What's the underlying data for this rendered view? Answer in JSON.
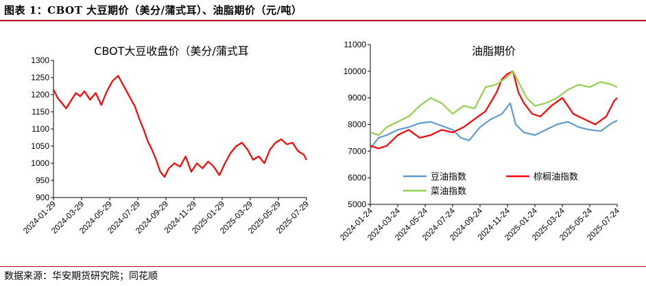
{
  "figure": {
    "title": "图表 1：CBOT 大豆期价（美分/蒲式耳）、油脂期价（元/吨）",
    "source": "数据来源：华安期货研究院；同花顺",
    "accent_color": "#b2001e"
  },
  "chart_data": [
    {
      "type": "line",
      "title": "CBOT大豆收盘价（美分/蒲式耳",
      "x_tick_labels": [
        "2024-01-29",
        "2024-03-29",
        "2024-05-29",
        "2024-07-29",
        "2024-09-29",
        "2024-11-29",
        "2025-01-29",
        "2025-03-29",
        "2025-05-29",
        "2025-07-29"
      ],
      "ylim": [
        900,
        1300
      ],
      "y_ticks": [
        900,
        950,
        1000,
        1050,
        1100,
        1150,
        1200,
        1250,
        1300
      ],
      "legend": "none",
      "grid": false,
      "series": [
        {
          "color": "#ff0000",
          "x": [
            0,
            0.15,
            0.3,
            0.45,
            0.6,
            0.8,
            0.95,
            1.1,
            1.3,
            1.5,
            1.7,
            1.9,
            2.1,
            2.3,
            2.5,
            2.7,
            2.9,
            3.05,
            3.2,
            3.35,
            3.5,
            3.65,
            3.8,
            3.95,
            4.1,
            4.3,
            4.5,
            4.7,
            4.9,
            5.1,
            5.3,
            5.5,
            5.7,
            5.9,
            6.1,
            6.3,
            6.5,
            6.7,
            6.9,
            7.1,
            7.3,
            7.5,
            7.7,
            7.9,
            8.1,
            8.3,
            8.5,
            8.7,
            8.9,
            9.0
          ],
          "y": [
            1215,
            1190,
            1175,
            1160,
            1180,
            1205,
            1195,
            1210,
            1185,
            1205,
            1170,
            1210,
            1240,
            1255,
            1225,
            1195,
            1165,
            1130,
            1100,
            1065,
            1040,
            1010,
            975,
            960,
            985,
            1000,
            990,
            1020,
            975,
            1000,
            985,
            1005,
            990,
            965,
            1000,
            1030,
            1050,
            1060,
            1040,
            1010,
            1020,
            1000,
            1040,
            1060,
            1070,
            1055,
            1060,
            1035,
            1025,
            1010
          ]
        }
      ]
    },
    {
      "type": "line",
      "title": "油脂期价",
      "x_tick_labels": [
        "2024-01-24",
        "2024-03-24",
        "2024-05-24",
        "2024-07-24",
        "2024-09-24",
        "2024-11-24",
        "2025-01-24",
        "2025-03-24",
        "2025-05-24",
        "2025-07-24"
      ],
      "ylim": [
        5000,
        11000
      ],
      "y_ticks": [
        5000,
        6000,
        7000,
        8000,
        9000,
        10000,
        11000
      ],
      "legend": "lower-center",
      "grid": false,
      "series": [
        {
          "name": "豆油指数",
          "color": "#5b9bd5",
          "x": [
            0,
            0.3,
            0.6,
            1.0,
            1.4,
            1.8,
            2.2,
            2.6,
            3.0,
            3.3,
            3.6,
            4.0,
            4.4,
            4.8,
            5.1,
            5.3,
            5.6,
            6.0,
            6.4,
            6.8,
            7.2,
            7.6,
            8.0,
            8.4,
            8.8,
            9.0
          ],
          "y": [
            7100,
            7500,
            7600,
            7800,
            7900,
            8050,
            8100,
            7950,
            7800,
            7500,
            7400,
            7900,
            8200,
            8400,
            8800,
            8000,
            7700,
            7600,
            7800,
            8000,
            8100,
            7900,
            7800,
            7750,
            8050,
            8150
          ]
        },
        {
          "name": "棕榈油指数",
          "color": "#ff0000",
          "x": [
            0,
            0.3,
            0.6,
            1.0,
            1.4,
            1.8,
            2.2,
            2.6,
            3.0,
            3.4,
            3.8,
            4.2,
            4.6,
            4.8,
            5.0,
            5.2,
            5.4,
            5.6,
            5.9,
            6.2,
            6.6,
            7.0,
            7.4,
            7.8,
            8.2,
            8.6,
            8.9,
            9.0
          ],
          "y": [
            7200,
            7100,
            7200,
            7600,
            7800,
            7500,
            7600,
            7800,
            7700,
            7900,
            8200,
            8500,
            9200,
            9700,
            9900,
            10000,
            9200,
            8800,
            8400,
            8300,
            8700,
            9000,
            8400,
            8200,
            8000,
            8300,
            8900,
            9000
          ]
        },
        {
          "name": "菜油指数",
          "color": "#92d050",
          "x": [
            0,
            0.3,
            0.6,
            1.0,
            1.4,
            1.8,
            2.2,
            2.6,
            3.0,
            3.4,
            3.8,
            4.2,
            4.6,
            5.0,
            5.2,
            5.4,
            5.7,
            6.0,
            6.4,
            6.8,
            7.2,
            7.6,
            8.0,
            8.4,
            8.8,
            9.0
          ],
          "y": [
            7700,
            7600,
            7900,
            8100,
            8300,
            8700,
            9000,
            8800,
            8400,
            8700,
            8600,
            9400,
            9500,
            9800,
            10000,
            9600,
            9000,
            8700,
            8800,
            9000,
            9300,
            9500,
            9400,
            9600,
            9500,
            9400
          ]
        }
      ]
    }
  ]
}
